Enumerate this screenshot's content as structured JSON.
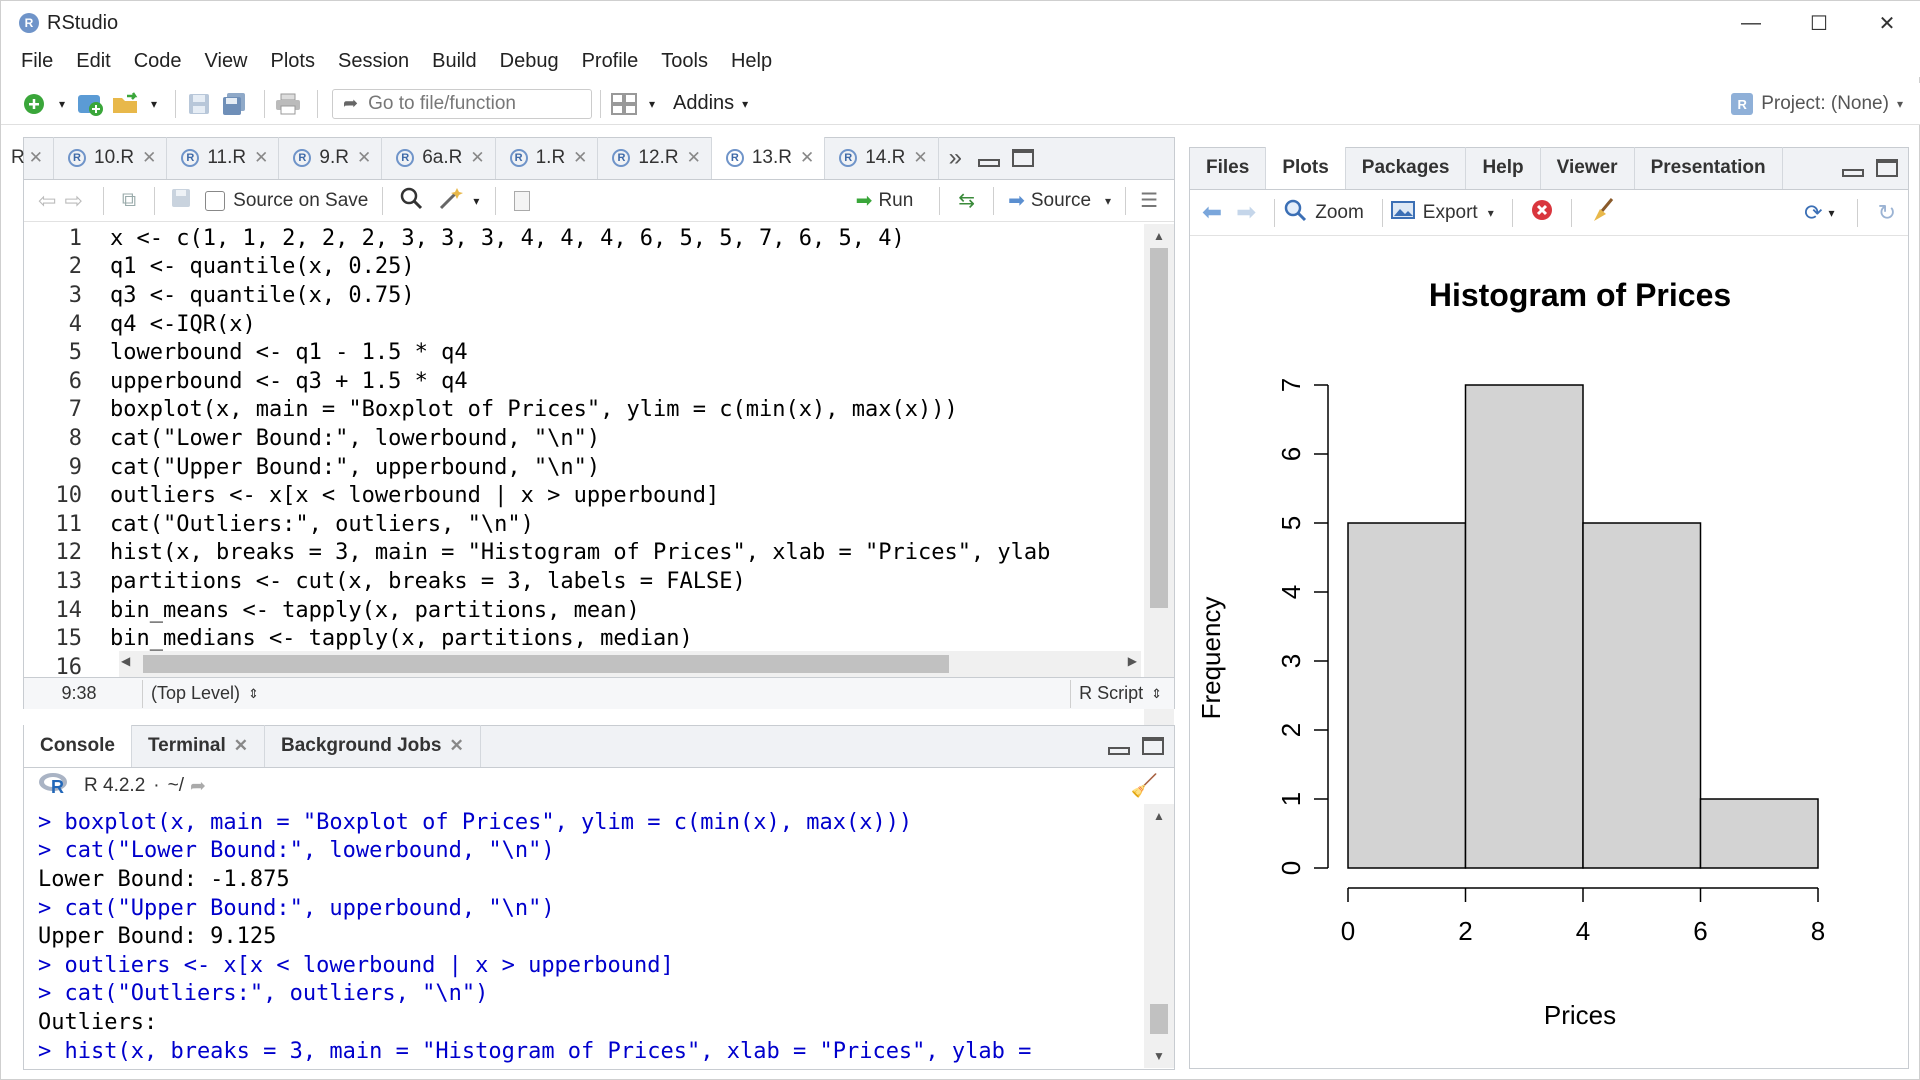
{
  "window": {
    "title": "RStudio",
    "app_icon": "R",
    "minimize": "—",
    "maximize": "☐",
    "close": "✕"
  },
  "menu": [
    "File",
    "Edit",
    "Code",
    "View",
    "Plots",
    "Session",
    "Build",
    "Debug",
    "Profile",
    "Tools",
    "Help"
  ],
  "toolbar": {
    "goto_placeholder": "Go to file/function",
    "addins": "Addins",
    "project": "Project: (None)"
  },
  "source": {
    "tabs": [
      {
        "label": "R"
      },
      {
        "label": "10.R"
      },
      {
        "label": "11.R"
      },
      {
        "label": "9.R"
      },
      {
        "label": "6a.R"
      },
      {
        "label": "1.R"
      },
      {
        "label": "12.R"
      },
      {
        "label": "13.R",
        "active": true
      },
      {
        "label": "14.R"
      }
    ],
    "source_on_save": "Source on Save",
    "run": "Run",
    "source_btn": "Source",
    "lines": [
      "x <- c(1, 1, 2, 2, 2, 3, 3, 3, 4, 4, 4, 6, 5, 5, 7, 6, 5, 4)",
      "q1 <- quantile(x, 0.25)",
      "q3 <- quantile(x, 0.75)",
      "q4 <-IQR(x)",
      "lowerbound <- q1 - 1.5 * q4",
      "upperbound <- q3 + 1.5 * q4",
      "boxplot(x, main = \"Boxplot of Prices\", ylim = c(min(x), max(x)))",
      "cat(\"Lower Bound:\", lowerbound, \"\\n\")",
      "cat(\"Upper Bound:\", upperbound, \"\\n\")",
      "outliers <- x[x < lowerbound | x > upperbound]",
      "cat(\"Outliers:\", outliers, \"\\n\")",
      "hist(x, breaks = 3, main = \"Histogram of Prices\", xlab = \"Prices\", ylab",
      "partitions <- cut(x, breaks = 3, labels = FALSE)",
      "bin_means <- tapply(x, partitions, mean)",
      "bin_medians <- tapply(x, partitions, median)",
      ""
    ],
    "cursor_pos": "9:38",
    "scope": "(Top Level)",
    "file_type": "R Script"
  },
  "console": {
    "tabs": [
      {
        "label": "Console",
        "active": true
      },
      {
        "label": "Terminal"
      },
      {
        "label": "Background Jobs"
      }
    ],
    "version": "R 4.2.2",
    "path": "~/",
    "lines": [
      {
        "type": "cmd",
        "text": "> boxplot(x, main = \"Boxplot of Prices\", ylim = c(min(x), max(x)))"
      },
      {
        "type": "cmd",
        "text": "> cat(\"Lower Bound:\", lowerbound, \"\\n\")"
      },
      {
        "type": "out",
        "text": "Lower Bound: -1.875"
      },
      {
        "type": "cmd",
        "text": "> cat(\"Upper Bound:\", upperbound, \"\\n\")"
      },
      {
        "type": "out",
        "text": "Upper Bound: 9.125"
      },
      {
        "type": "cmd",
        "text": "> outliers <- x[x < lowerbound | x > upperbound]"
      },
      {
        "type": "cmd",
        "text": "> cat(\"Outliers:\", outliers, \"\\n\")"
      },
      {
        "type": "out",
        "text": "Outliers:"
      },
      {
        "type": "cmd",
        "text": "> hist(x, breaks = 3, main = \"Histogram of Prices\", xlab = \"Prices\", ylab ="
      }
    ]
  },
  "files_pane": {
    "tabs": [
      {
        "label": "Files"
      },
      {
        "label": "Plots",
        "active": true
      },
      {
        "label": "Packages"
      },
      {
        "label": "Help"
      },
      {
        "label": "Viewer"
      },
      {
        "label": "Presentation"
      }
    ],
    "zoom": "Zoom",
    "export": "Export"
  },
  "chart_data": {
    "type": "bar",
    "title": "Histogram of Prices",
    "xlabel": "Prices",
    "ylabel": "Frequency",
    "bins": [
      [
        0,
        2
      ],
      [
        2,
        4
      ],
      [
        4,
        6
      ],
      [
        6,
        8
      ]
    ],
    "values": [
      5,
      7,
      5,
      1
    ],
    "xticks": [
      0,
      2,
      4,
      6,
      8
    ],
    "yticks": [
      0,
      1,
      2,
      3,
      4,
      5,
      6,
      7
    ],
    "xlim": [
      0,
      8
    ],
    "ylim": [
      0,
      7
    ]
  }
}
